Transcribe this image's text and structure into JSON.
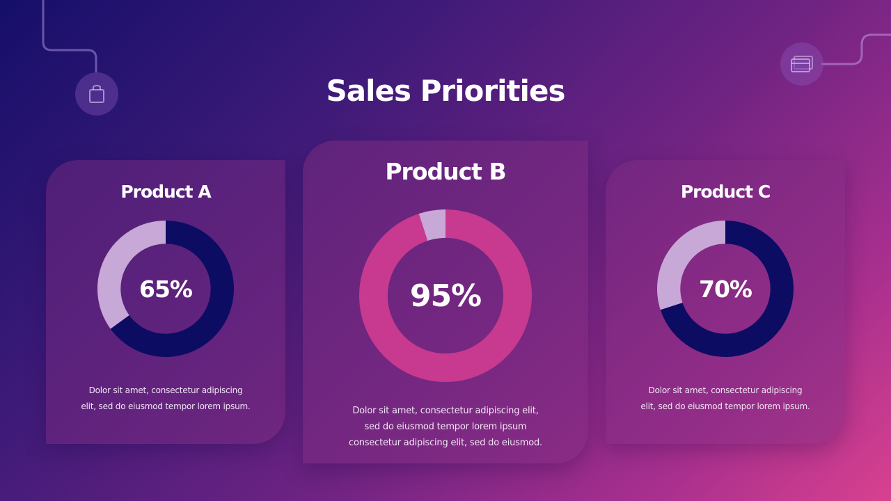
{
  "title": "Sales Priorities",
  "decor": {
    "left_icon": "shopping-bag-icon",
    "right_icon": "credit-card-icon"
  },
  "colors": {
    "navy": "#0d0c63",
    "pink": "#c73a90",
    "remainder": "#c8a8d6"
  },
  "chart_data": [
    {
      "type": "pie",
      "title": "Product A",
      "values": [
        65,
        35
      ],
      "center_label": "65%",
      "description": [
        "Dolor sit amet, consectetur adipiscing",
        "elit, sed do eiusmod tempor lorem ipsum."
      ]
    },
    {
      "type": "pie",
      "title": "Product B",
      "values": [
        95,
        5
      ],
      "center_label": "95%",
      "description": [
        "Dolor sit amet, consectetur adipiscing elit,",
        "sed do eiusmod tempor lorem ipsum",
        "consectetur adipiscing elit, sed do eiusmod."
      ]
    },
    {
      "type": "pie",
      "title": "Product C",
      "values": [
        70,
        30
      ],
      "center_label": "70%",
      "description": [
        "Dolor sit amet, consectetur adipiscing",
        "elit, sed do eiusmod tempor lorem ipsum."
      ]
    }
  ]
}
